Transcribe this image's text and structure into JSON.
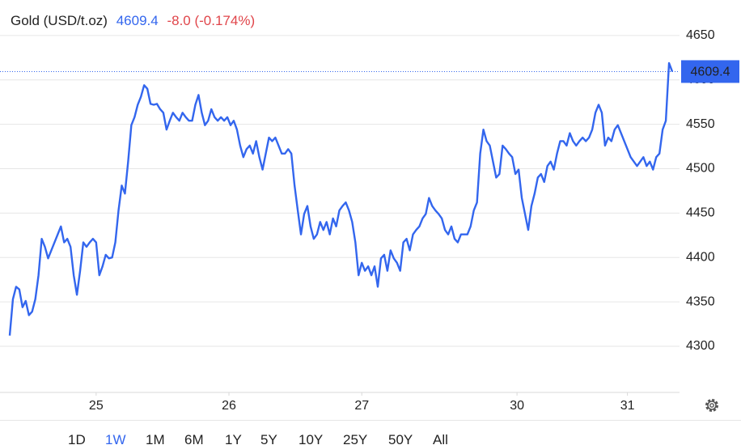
{
  "chart_data": {
    "type": "line",
    "title": "Gold (USD/t.oz)",
    "change": "-8.0 (-0.174%)",
    "series": [
      {
        "name": "Gold",
        "color": "#3366ee",
        "values": [
          4312,
          4353,
          4367,
          4364,
          4344,
          4351,
          4335,
          4339,
          4353,
          4380,
          4421,
          4412,
          4399,
          4408,
          4417,
          4426,
          4435,
          4417,
          4421,
          4412,
          4380,
          4358,
          4385,
          4417,
          4412,
          4417,
          4421,
          4417,
          4380,
          4390,
          4403,
          4399,
          4400,
          4417,
          4453,
          4481,
          4472,
          4508,
          4549,
          4558,
          4572,
          4581,
          4594,
          4590,
          4573,
          4572,
          4573,
          4567,
          4563,
          4544,
          4554,
          4563,
          4558,
          4554,
          4563,
          4558,
          4554,
          4554,
          4572,
          4583,
          4563,
          4549,
          4554,
          4567,
          4558,
          4554,
          4558,
          4554,
          4558,
          4549,
          4554,
          4544,
          4526,
          4513,
          4522,
          4526,
          4517,
          4531,
          4513,
          4499,
          4517,
          4535,
          4531,
          4535,
          4526,
          4517,
          4517,
          4522,
          4517,
          4481,
          4453,
          4426,
          4449,
          4458,
          4435,
          4421,
          4426,
          4440,
          4431,
          4440,
          4426,
          4444,
          4435,
          4453,
          4458,
          4462,
          4453,
          4440,
          4417,
          4380,
          4394,
          4385,
          4390,
          4380,
          4390,
          4367,
          4399,
          4403,
          4385,
          4408,
          4399,
          4394,
          4385,
          4417,
          4421,
          4408,
          4426,
          4431,
          4435,
          4444,
          4449,
          4467,
          4458,
          4453,
          4449,
          4444,
          4431,
          4426,
          4435,
          4421,
          4417,
          4426,
          4426,
          4426,
          4435,
          4453,
          4462,
          4517,
          4544,
          4531,
          4526,
          4508,
          4490,
          4494,
          4526,
          4522,
          4517,
          4513,
          4494,
          4499,
          4467,
          4449,
          4431,
          4458,
          4472,
          4490,
          4494,
          4485,
          4503,
          4508,
          4499,
          4517,
          4531,
          4531,
          4526,
          4540,
          4531,
          4526,
          4531,
          4535,
          4531,
          4535,
          4544,
          4563,
          4572,
          4563,
          4526,
          4535,
          4531,
          4544,
          4549,
          4540,
          4531,
          4522,
          4513,
          4508,
          4503,
          4508,
          4513,
          4503,
          4508,
          4499,
          4513,
          4517,
          4544,
          4554,
          4619,
          4609.4
        ]
      }
    ],
    "xlim": [
      0,
      207
    ],
    "xticks": [
      {
        "value": 27,
        "label": "25"
      },
      {
        "value": 68.5,
        "label": "26"
      },
      {
        "value": 110,
        "label": "27"
      },
      {
        "value": 158.5,
        "label": "30"
      },
      {
        "value": 193,
        "label": "31"
      }
    ],
    "ylim": [
      4248,
      4690
    ],
    "yticks": [
      4300,
      4350,
      4400,
      4450,
      4500,
      4550,
      4600,
      4650
    ],
    "grid": true,
    "change_color": "#e0454a"
  },
  "range_buttons": [
    "1D",
    "1W",
    "1M",
    "6M",
    "1Y",
    "5Y",
    "10Y",
    "25Y",
    "50Y",
    "All"
  ],
  "selected_range": 1
}
